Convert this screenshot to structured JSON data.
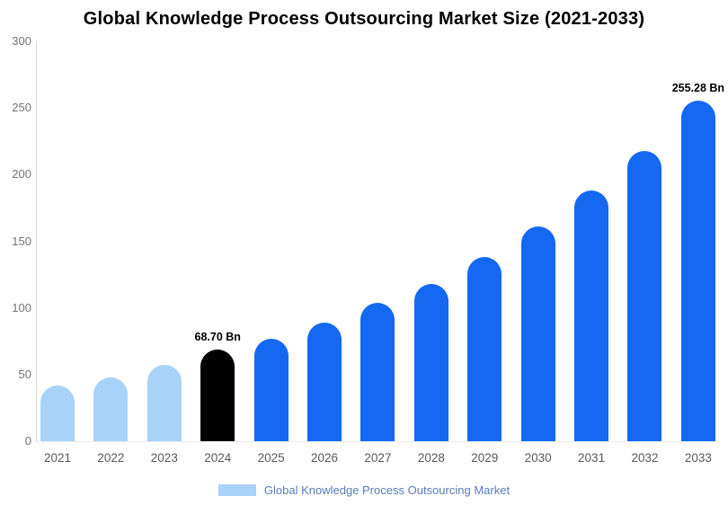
{
  "legend": {
    "label": "Global Knowledge Process Outsourcing Market",
    "swatch_color": "#a9d2f8",
    "label_color": "#5a7db6"
  },
  "colors": {
    "historical_bar": "#a9d2f8",
    "base_year_bar": "#000000",
    "forecast_bar": "#1468f2",
    "axis_label": "#737373",
    "year_label": "#595959"
  },
  "chart_data": {
    "type": "bar",
    "title": "Global Knowledge Process Outsourcing Market Size (2021-2033)",
    "xlabel": "",
    "ylabel": "",
    "categories": [
      "2021",
      "2022",
      "2023",
      "2024",
      "2025",
      "2026",
      "2027",
      "2028",
      "2029",
      "2030",
      "2031",
      "2032",
      "2033"
    ],
    "values": [
      42,
      48,
      57,
      68.7,
      77,
      89,
      104,
      118,
      138,
      161,
      188,
      218,
      255.28
    ],
    "bar_colors": [
      "#a9d2f8",
      "#a9d2f8",
      "#a9d2f8",
      "#000000",
      "#1468f2",
      "#1468f2",
      "#1468f2",
      "#1468f2",
      "#1468f2",
      "#1468f2",
      "#1468f2",
      "#1468f2",
      "#1468f2"
    ],
    "annotations": [
      {
        "category": "2024",
        "text": "68.70 Bn"
      },
      {
        "category": "2033",
        "text": "255.28 Bn"
      }
    ],
    "ylim": [
      0,
      300
    ],
    "yticks": [
      0,
      50,
      100,
      150,
      200,
      250,
      300
    ],
    "grid": false,
    "legend_position": "bottom",
    "legend_entries": [
      "Global Knowledge Process Outsourcing Market"
    ]
  }
}
